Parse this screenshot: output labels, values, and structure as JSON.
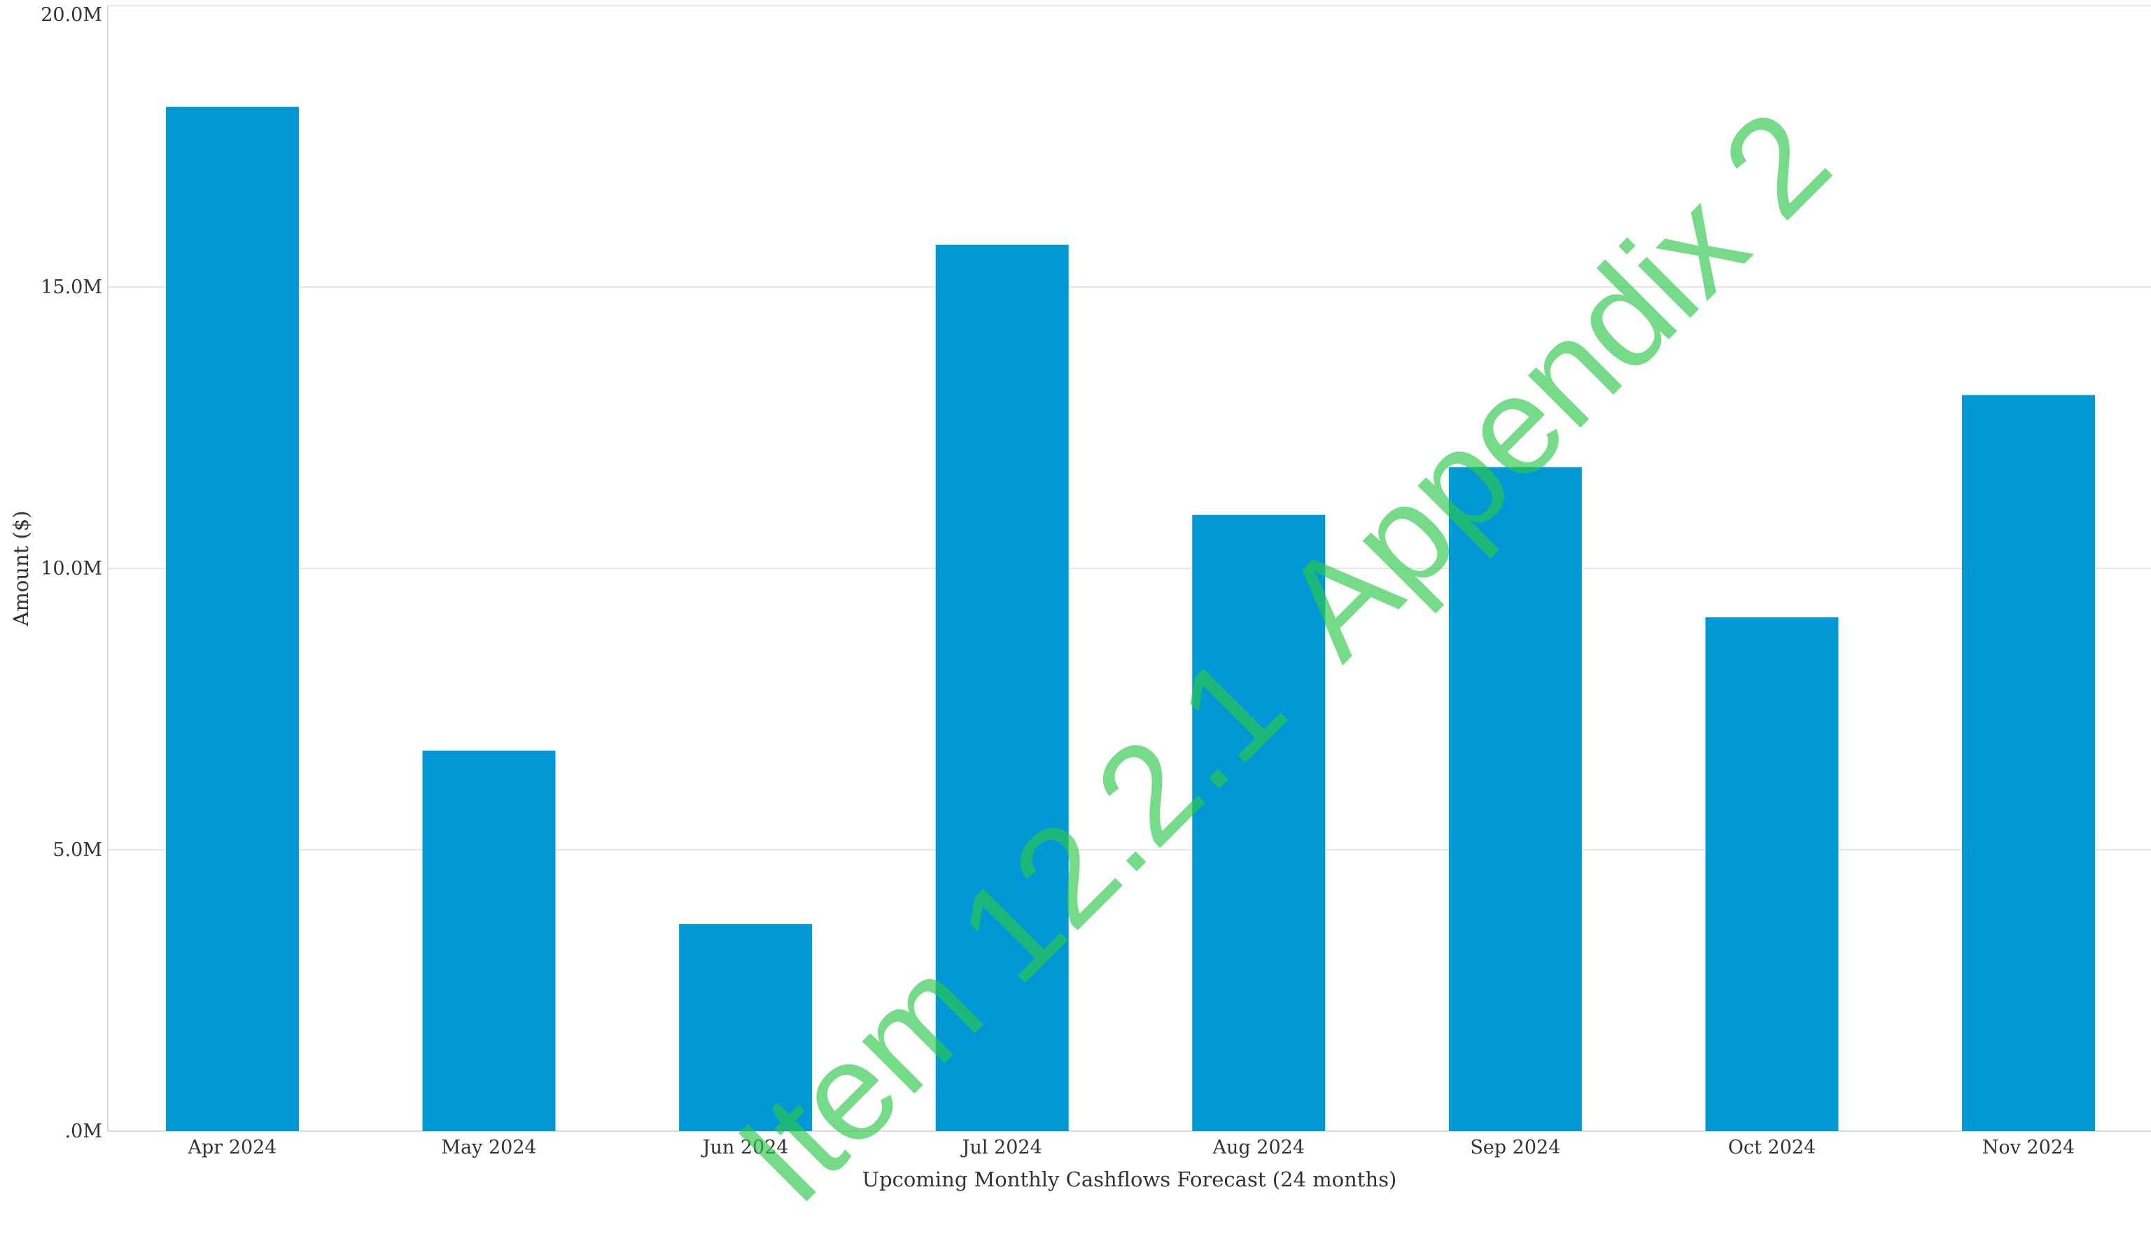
{
  "chart_data": {
    "type": "bar",
    "categories": [
      "Apr 2024",
      "May 2024",
      "Jun 2024",
      "Jul 2024",
      "Aug 2024",
      "Sep 2024",
      "Oct 2024",
      "Nov 2024"
    ],
    "values": [
      18200000,
      6760000,
      3680000,
      15750000,
      10950000,
      11800000,
      9130000,
      13080000
    ],
    "xlabel": "Upcoming Monthly Cashflows Forecast (24 months)",
    "ylabel": "Amount ($)",
    "ylim": [
      0,
      20000000
    ],
    "yticks": [
      {
        "value": 0,
        "label": ".0M"
      },
      {
        "value": 5000000,
        "label": "5.0M"
      },
      {
        "value": 10000000,
        "label": "10.0M"
      },
      {
        "value": 15000000,
        "label": "15.0M"
      },
      {
        "value": 20000000,
        "label": "20.0M"
      }
    ],
    "grid": true,
    "bar_color": "#0099d5"
  },
  "watermark": {
    "text": "Item 12.2.1  Appendix 2",
    "color": "#2dc84a"
  }
}
